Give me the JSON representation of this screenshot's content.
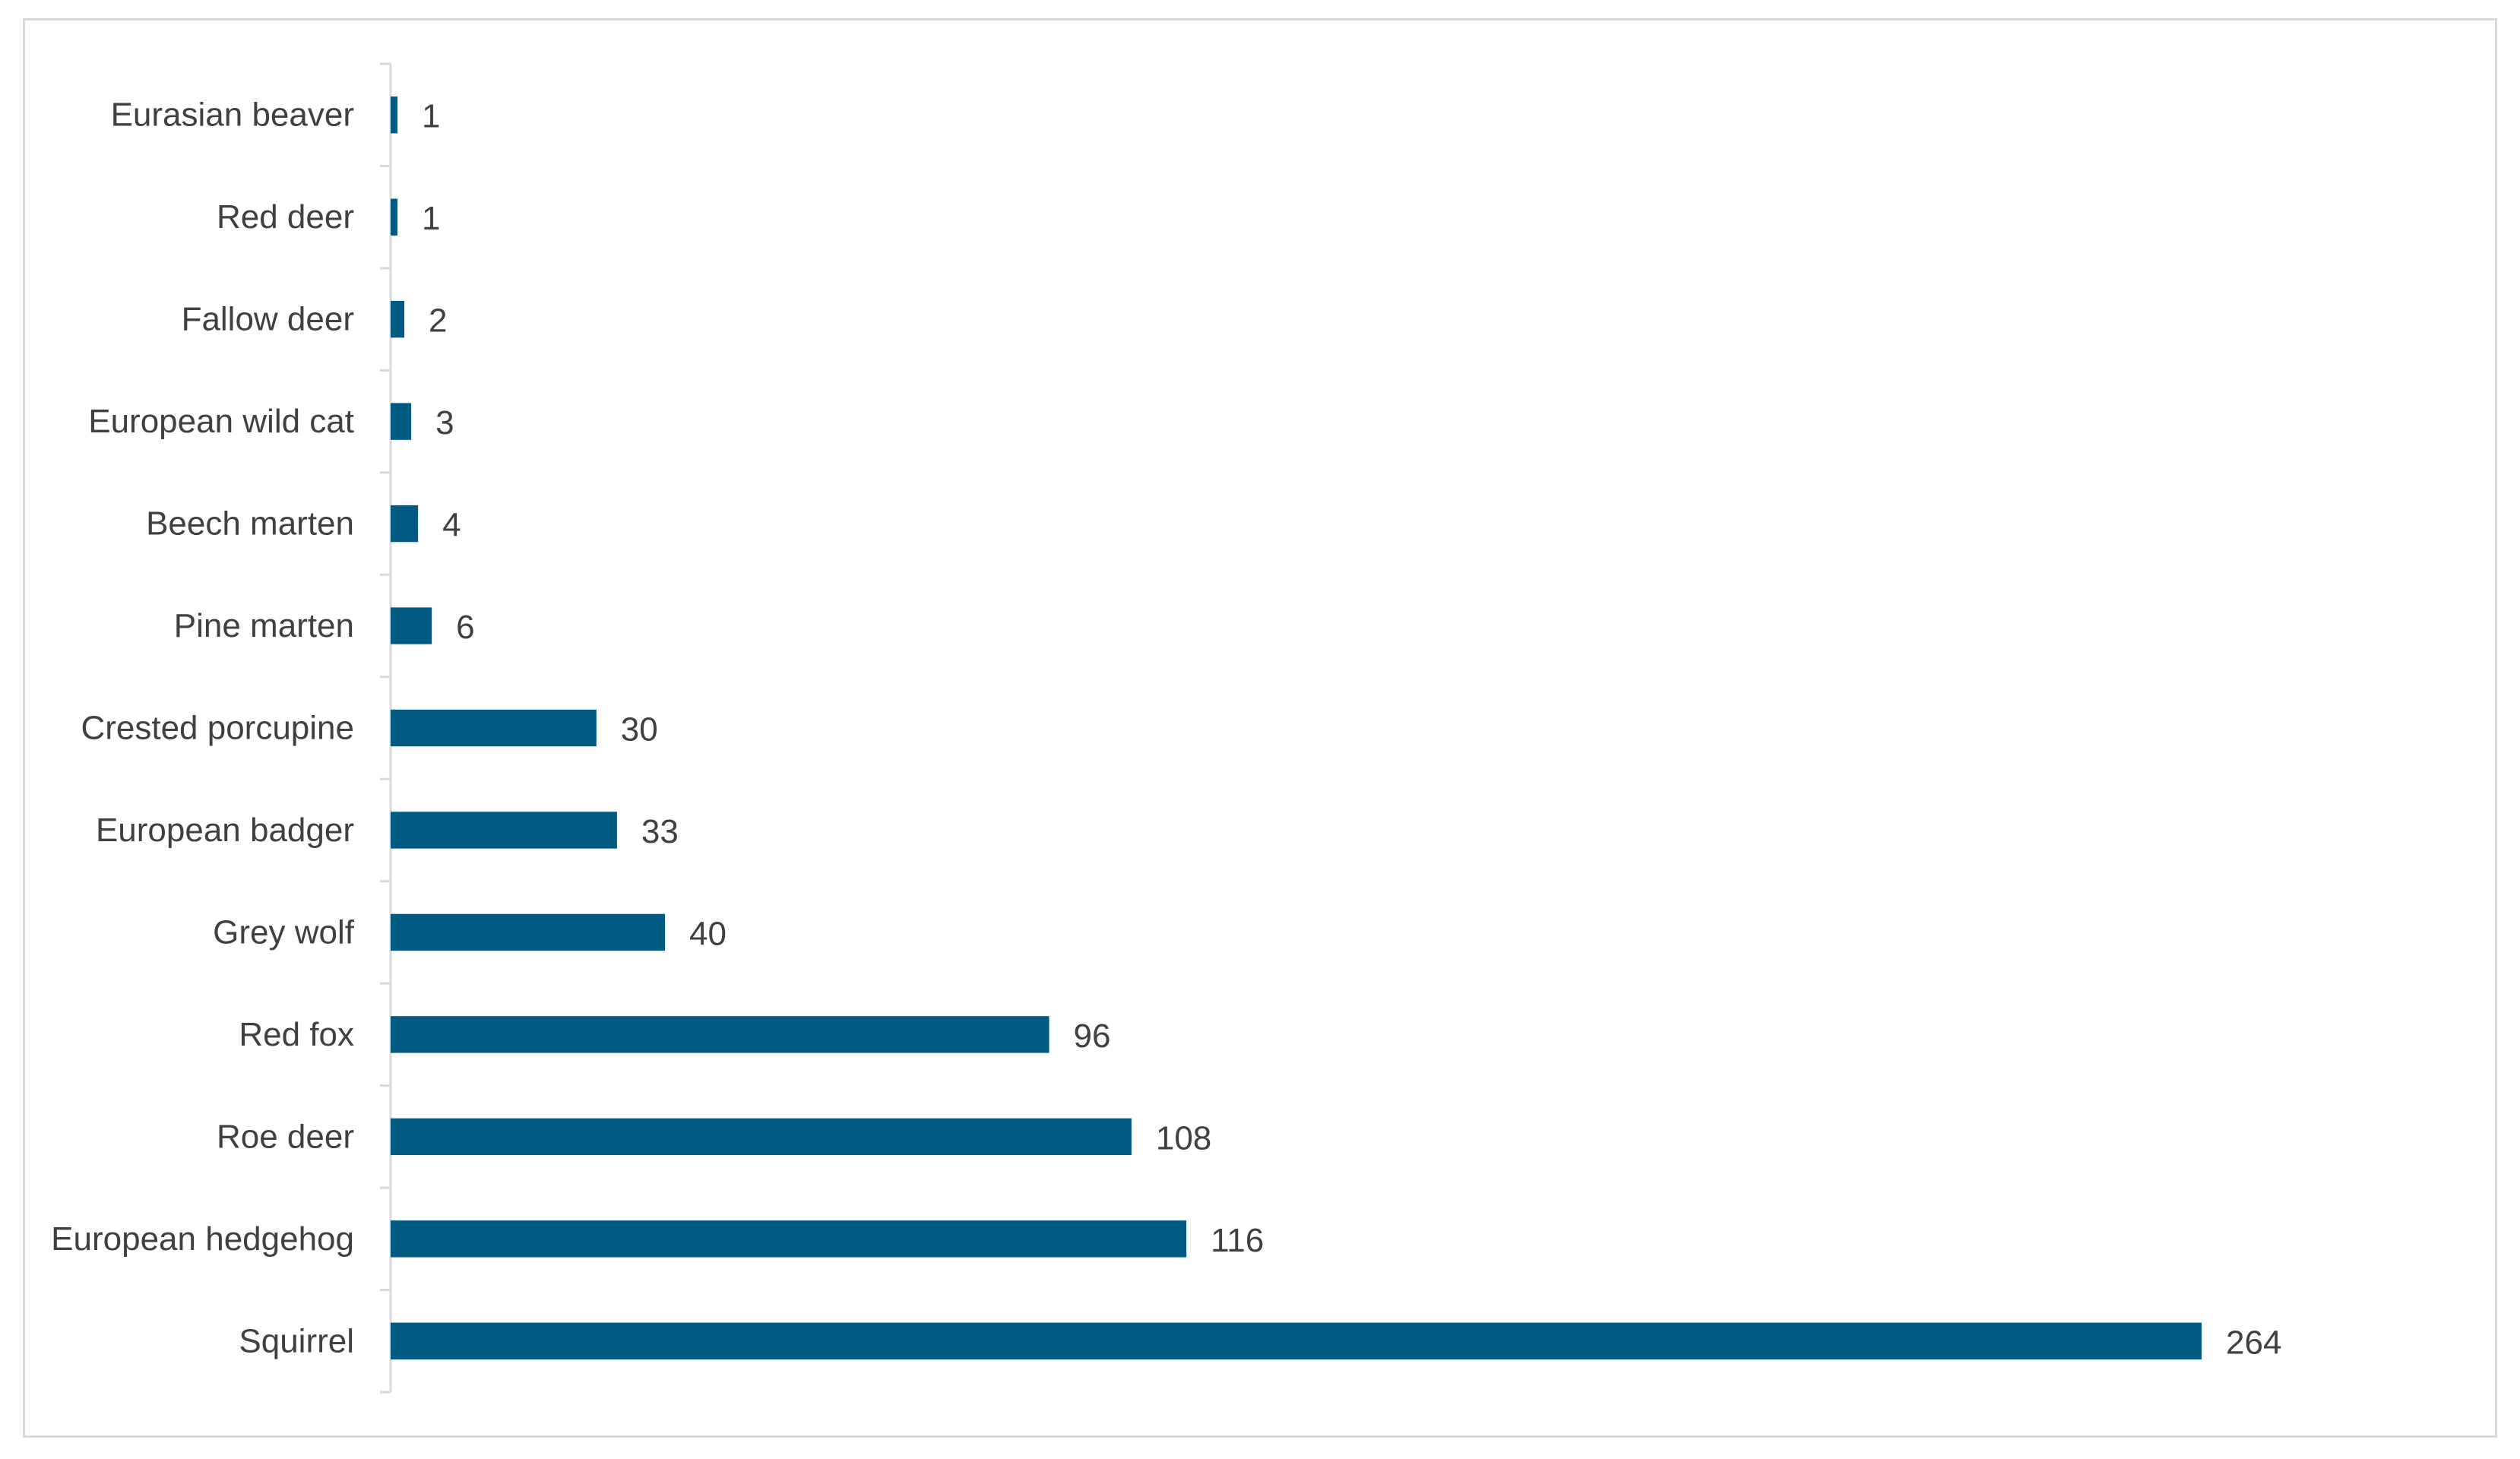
{
  "chart_data": {
    "type": "bar",
    "orientation": "horizontal",
    "categories": [
      "Eurasian beaver",
      "Red deer",
      "Fallow deer",
      "European wild cat",
      "Beech marten",
      "Pine marten",
      "Crested porcupine",
      "European badger",
      "Grey wolf",
      "Red fox",
      "Roe deer",
      "European hedgehog",
      "Squirrel"
    ],
    "values": [
      1,
      1,
      2,
      3,
      4,
      6,
      30,
      33,
      40,
      96,
      108,
      116,
      264
    ],
    "title": "",
    "xlabel": "",
    "ylabel": "",
    "xlim": [
      0,
      264
    ],
    "grid": false,
    "legend": "none",
    "data_labels": true,
    "bar_color": "#005b82",
    "frame_color": "#d9d9d9",
    "axis_color": "#d9d9d9",
    "text_color": "#404040"
  }
}
